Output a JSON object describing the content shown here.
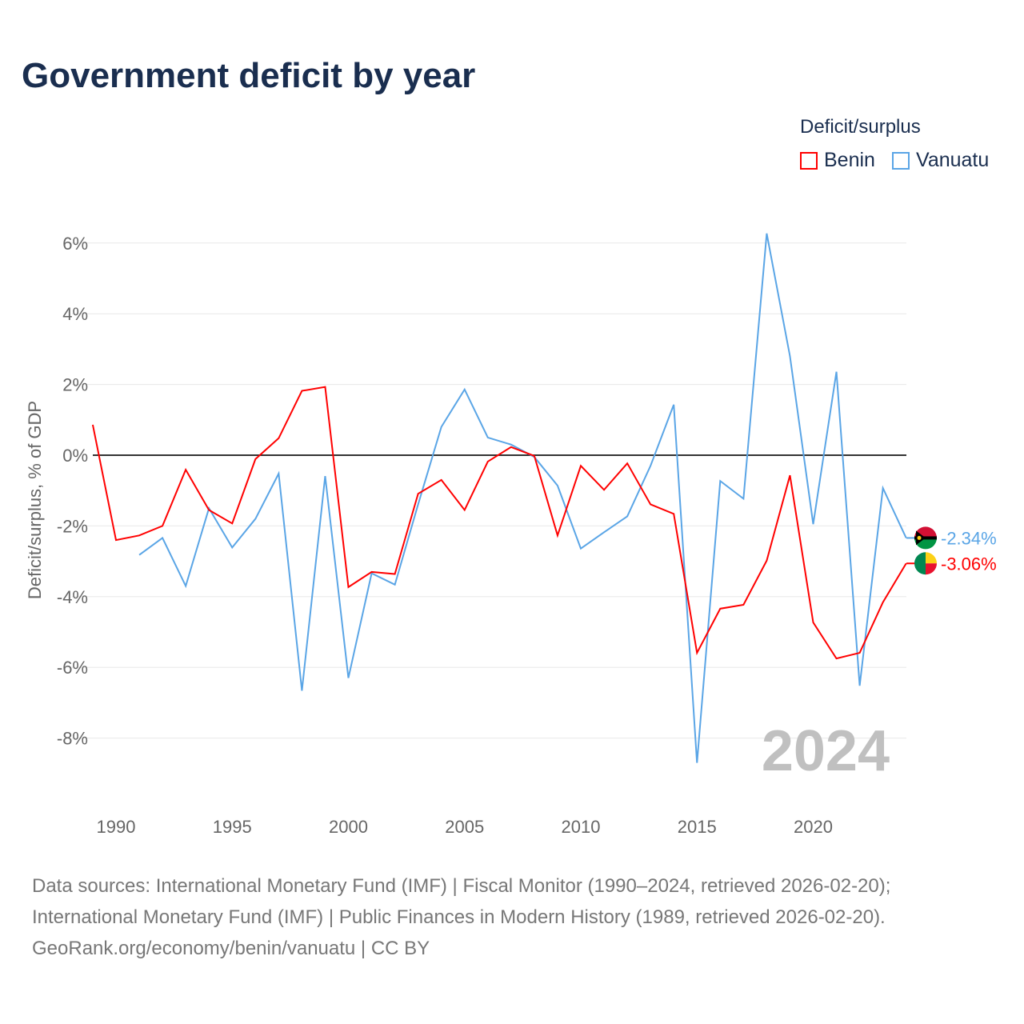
{
  "chart_data": {
    "type": "line",
    "title": "Government deficit by year",
    "ylabel": "Deficit/surplus, % of GDP",
    "xlabel": "",
    "ylim": [
      -9.8,
      6.3
    ],
    "xlim": [
      1989,
      2024
    ],
    "yticks": [
      6,
      4,
      2,
      0,
      -2,
      -4,
      -6,
      -8
    ],
    "ytick_labels": [
      "6%",
      "4%",
      "2%",
      "0%",
      "-2%",
      "-4%",
      "-6%",
      "-8%"
    ],
    "xticks": [
      1990,
      1995,
      2000,
      2005,
      2010,
      2015,
      2020
    ],
    "xtick_labels": [
      "1990",
      "1995",
      "2000",
      "2005",
      "2010",
      "2015",
      "2020"
    ],
    "legend_title": "Deficit/surplus",
    "legend_position": "top-right",
    "year_watermark": "2024",
    "series": [
      {
        "name": "Benin",
        "color": "#ff0000",
        "end_label": "-3.06%",
        "x": [
          1989,
          1990,
          1991,
          1992,
          1993,
          1994,
          1995,
          1996,
          1997,
          1998,
          1999,
          2000,
          2001,
          2002,
          2003,
          2004,
          2005,
          2006,
          2007,
          2008,
          2009,
          2010,
          2011,
          2012,
          2013,
          2014,
          2015,
          2016,
          2017,
          2018,
          2019,
          2020,
          2021,
          2022,
          2023,
          2024
        ],
        "values": [
          0.86,
          -2.4,
          -2.27,
          -2.0,
          -0.41,
          -1.55,
          -1.93,
          -0.11,
          0.48,
          1.82,
          1.93,
          -3.73,
          -3.3,
          -3.36,
          -1.09,
          -0.7,
          -1.55,
          -0.18,
          0.23,
          -0.02,
          -2.27,
          -0.3,
          -0.98,
          -0.23,
          -1.39,
          -1.66,
          -5.59,
          -4.34,
          -4.23,
          -2.98,
          -0.57,
          -4.73,
          -5.75,
          -5.59,
          -4.16,
          -3.06
        ]
      },
      {
        "name": "Vanuatu",
        "color": "#5aa5e6",
        "end_label": "-2.34%",
        "x": [
          1991,
          1992,
          1993,
          1994,
          1995,
          1996,
          1997,
          1998,
          1999,
          2000,
          2001,
          2002,
          2003,
          2004,
          2005,
          2006,
          2007,
          2008,
          2009,
          2010,
          2011,
          2012,
          2013,
          2014,
          2015,
          2016,
          2017,
          2018,
          2019,
          2020,
          2021,
          2022,
          2023,
          2024
        ],
        "values": [
          -2.82,
          -2.34,
          -3.7,
          -1.5,
          -2.61,
          -1.8,
          -0.52,
          -6.66,
          -0.59,
          -6.3,
          -3.34,
          -3.66,
          -1.39,
          0.8,
          1.86,
          0.5,
          0.3,
          -0.05,
          -0.86,
          -2.64,
          -2.18,
          -1.73,
          -0.3,
          1.43,
          -8.7,
          -0.73,
          -1.23,
          6.27,
          2.8,
          -1.95,
          2.36,
          -6.52,
          -0.93,
          -2.34
        ]
      }
    ]
  },
  "footer": {
    "line1": "Data sources: International Monetary Fund (IMF) | Fiscal Monitor (1990–2024, retrieved 2026-02-20);",
    "line2": "International Monetary Fund (IMF) | Public Finances in Modern History (1989, retrieved 2026-02-20).",
    "line3": "GeoRank.org/economy/benin/vanuatu | CC BY"
  }
}
